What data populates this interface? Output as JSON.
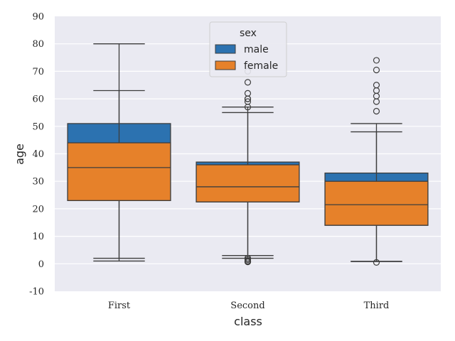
{
  "chart_data": {
    "type": "box",
    "title": "",
    "xlabel": "class",
    "ylabel": "age",
    "ylim": [
      -10,
      90
    ],
    "yticks": [
      -10,
      0,
      10,
      20,
      30,
      40,
      50,
      60,
      70,
      80,
      90
    ],
    "grid": true,
    "legend": {
      "title": "sex",
      "placement": "top-center"
    },
    "colors": {
      "plot_bg": "#EAEAF2",
      "grid": "#FFFFFF",
      "line": "#3D3D3D"
    },
    "categories": [
      "First",
      "Second",
      "Third"
    ],
    "series": [
      {
        "name": "male",
        "color": "#2C72B0",
        "boxes": [
          {
            "whisker_low": 1,
            "q1": 23,
            "median": 40,
            "q3": 51,
            "whisker_high": 80,
            "outliers": []
          },
          {
            "whisker_low": 2,
            "q1": 22.5,
            "median": 30,
            "q3": 37,
            "whisker_high": 57,
            "outliers": [
              0.7,
              1,
              2,
              59,
              60,
              62,
              66,
              70
            ]
          },
          {
            "whisker_low": 0.9,
            "q1": 14,
            "median": 25,
            "q3": 33,
            "whisker_high": 51,
            "outliers": [
              55.5,
              59,
              61,
              63,
              65,
              70.5,
              74
            ]
          }
        ]
      },
      {
        "name": "female",
        "color": "#E6812A",
        "boxes": [
          {
            "whisker_low": 2,
            "q1": 23,
            "median": 35,
            "q3": 44,
            "whisker_high": 63,
            "outliers": []
          },
          {
            "whisker_low": 3,
            "q1": 22.5,
            "median": 28,
            "q3": 36,
            "whisker_high": 55,
            "outliers": [
              0.8,
              1.5,
              2,
              57,
              60
            ]
          },
          {
            "whisker_low": 0.8,
            "q1": 14,
            "median": 21.5,
            "q3": 30,
            "whisker_high": 48,
            "outliers": [
              0.5
            ]
          }
        ]
      }
    ]
  }
}
